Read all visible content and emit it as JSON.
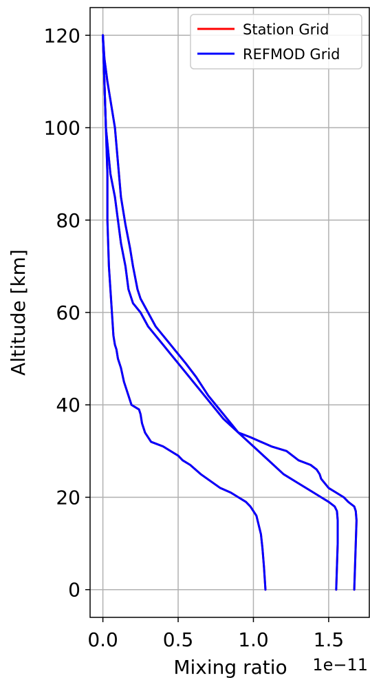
{
  "chart_data": {
    "type": "line",
    "title": "",
    "xlabel": "Mixing ratio",
    "ylabel": "Altitude [km]",
    "x_offset_label": "1e−11",
    "xlim": [
      -0.085,
      1.77
    ],
    "ylim": [
      -6,
      126
    ],
    "x_ticks": [
      0.0,
      0.5,
      1.0,
      1.5
    ],
    "x_tick_labels": [
      "0.0",
      "0.5",
      "1.0",
      "1.5"
    ],
    "y_ticks": [
      0,
      20,
      40,
      60,
      80,
      100,
      120
    ],
    "y_tick_labels": [
      "0",
      "20",
      "40",
      "60",
      "80",
      "100",
      "120"
    ],
    "grid": true,
    "legend_position": "top-right",
    "x_units_scale": "1e-11",
    "series": [
      {
        "name": "Station Grid",
        "color": "#ff0000",
        "profiles": [
          {
            "x": [
              1.08,
              1.07,
              1.06,
              1.05,
              1.02,
              0.98,
              0.95,
              0.9,
              0.85,
              0.78,
              0.65,
              0.58,
              0.53,
              0.5,
              0.45,
              0.4,
              0.32,
              0.28,
              0.26,
              0.25,
              0.24,
              0.19,
              0.17,
              0.14,
              0.12,
              0.1,
              0.09,
              0.08,
              0.07,
              0.06,
              0.05,
              0.04,
              0.03,
              0.03,
              0.02,
              0.01,
              0.0
            ],
            "y": [
              0,
              5,
              9,
              12,
              16,
              18,
              19,
              20,
              21,
              22,
              25,
              27,
              28,
              29,
              30,
              31,
              32,
              34,
              36,
              38,
              39,
              40,
              42,
              45,
              48,
              50,
              52,
              53,
              55,
              60,
              65,
              70,
              80,
              90,
              100,
              110,
              120
            ]
          },
          {
            "x": [
              1.55,
              1.555,
              1.56,
              1.56,
              1.555,
              1.54,
              1.5,
              1.45,
              1.4,
              1.3,
              1.2,
              1.1,
              1.0,
              0.9,
              0.8,
              0.7,
              0.6,
              0.5,
              0.45,
              0.4,
              0.35,
              0.3,
              0.25,
              0.2,
              0.17,
              0.15,
              0.12,
              0.1,
              0.08,
              0.05,
              0.02,
              0.01,
              0.0
            ],
            "y": [
              0,
              5,
              10,
              15,
              17,
              18,
              19,
              20,
              21,
              23,
              25,
              28,
              31,
              34,
              37,
              41,
              45,
              49,
              51,
              53,
              55,
              57,
              60,
              62,
              65,
              70,
              75,
              80,
              85,
              90,
              100,
              110,
              120
            ]
          },
          {
            "x": [
              1.67,
              1.675,
              1.68,
              1.685,
              1.68,
              1.67,
              1.63,
              1.6,
              1.55,
              1.5,
              1.45,
              1.44,
              1.42,
              1.38,
              1.3,
              1.22,
              1.12,
              1.05,
              0.98,
              0.9,
              0.85,
              0.75,
              0.7,
              0.62,
              0.55,
              0.45,
              0.4,
              0.35,
              0.3,
              0.25,
              0.23,
              0.2,
              0.18,
              0.15,
              0.12,
              0.08,
              0.06,
              0.03,
              0.01,
              0.0
            ],
            "y": [
              0,
              5,
              10,
              15,
              17,
              18,
              19,
              20,
              21,
              22,
              24,
              25,
              26,
              27,
              28,
              30,
              31,
              32,
              33,
              34,
              36,
              40,
              42,
              46,
              49,
              53,
              55,
              57,
              60,
              63,
              65,
              70,
              74,
              79,
              85,
              100,
              104,
              110,
              115,
              120
            ]
          }
        ]
      },
      {
        "name": "REFMOD Grid",
        "color": "#0000ff",
        "profiles": [
          {
            "x": [
              1.08,
              1.07,
              1.06,
              1.05,
              1.02,
              0.98,
              0.95,
              0.9,
              0.85,
              0.78,
              0.65,
              0.58,
              0.53,
              0.5,
              0.45,
              0.4,
              0.32,
              0.28,
              0.26,
              0.25,
              0.24,
              0.19,
              0.17,
              0.14,
              0.12,
              0.1,
              0.09,
              0.08,
              0.07,
              0.06,
              0.05,
              0.04,
              0.03,
              0.03,
              0.02,
              0.01,
              0.0
            ],
            "y": [
              0,
              5,
              9,
              12,
              16,
              18,
              19,
              20,
              21,
              22,
              25,
              27,
              28,
              29,
              30,
              31,
              32,
              34,
              36,
              38,
              39,
              40,
              42,
              45,
              48,
              50,
              52,
              53,
              55,
              60,
              65,
              70,
              80,
              90,
              100,
              110,
              120
            ]
          },
          {
            "x": [
              1.55,
              1.555,
              1.56,
              1.56,
              1.555,
              1.54,
              1.5,
              1.45,
              1.4,
              1.3,
              1.2,
              1.1,
              1.0,
              0.9,
              0.8,
              0.7,
              0.6,
              0.5,
              0.45,
              0.4,
              0.35,
              0.3,
              0.25,
              0.2,
              0.17,
              0.15,
              0.12,
              0.1,
              0.08,
              0.05,
              0.02,
              0.01,
              0.0
            ],
            "y": [
              0,
              5,
              10,
              15,
              17,
              18,
              19,
              20,
              21,
              23,
              25,
              28,
              31,
              34,
              37,
              41,
              45,
              49,
              51,
              53,
              55,
              57,
              60,
              62,
              65,
              70,
              75,
              80,
              85,
              90,
              100,
              110,
              120
            ]
          },
          {
            "x": [
              1.67,
              1.675,
              1.68,
              1.685,
              1.68,
              1.67,
              1.63,
              1.6,
              1.55,
              1.5,
              1.45,
              1.44,
              1.42,
              1.38,
              1.3,
              1.22,
              1.12,
              1.05,
              0.98,
              0.9,
              0.85,
              0.75,
              0.7,
              0.62,
              0.55,
              0.45,
              0.4,
              0.35,
              0.3,
              0.25,
              0.23,
              0.2,
              0.18,
              0.15,
              0.12,
              0.08,
              0.06,
              0.03,
              0.01,
              0.0
            ],
            "y": [
              0,
              5,
              10,
              15,
              17,
              18,
              19,
              20,
              21,
              22,
              24,
              25,
              26,
              27,
              28,
              30,
              31,
              32,
              33,
              34,
              36,
              40,
              42,
              46,
              49,
              53,
              55,
              57,
              60,
              63,
              65,
              70,
              74,
              79,
              85,
              100,
              104,
              110,
              115,
              120
            ]
          }
        ]
      }
    ]
  }
}
